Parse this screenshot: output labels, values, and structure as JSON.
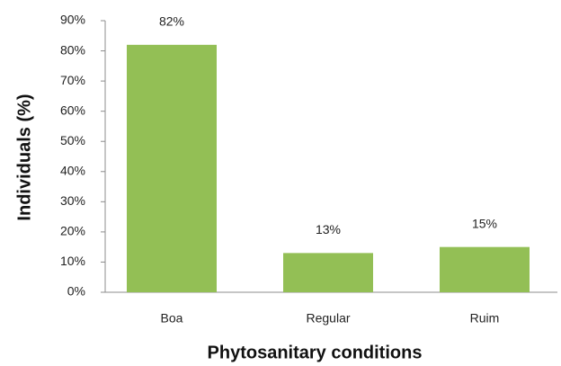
{
  "chart_data": {
    "type": "bar",
    "categories": [
      "Boa",
      "Regular",
      "Ruim"
    ],
    "values": [
      82,
      13,
      15
    ],
    "value_labels": [
      "82%",
      "13%",
      "15%"
    ],
    "color": "#93bf55",
    "xlabel": "Phytosanitary conditions",
    "ylabel": "Individuals (%)",
    "ylim": [
      0,
      90
    ],
    "yticks": [
      {
        "value": 0,
        "label": "0%"
      },
      {
        "value": 10,
        "label": "10%"
      },
      {
        "value": 20,
        "label": "20%"
      },
      {
        "value": 30,
        "label": "30%"
      },
      {
        "value": 40,
        "label": "40%"
      },
      {
        "value": 50,
        "label": "50%"
      },
      {
        "value": 60,
        "label": "60%"
      },
      {
        "value": 70,
        "label": "70%"
      },
      {
        "value": 80,
        "label": "80%"
      },
      {
        "value": 90,
        "label": "90%"
      }
    ],
    "grid": false
  }
}
